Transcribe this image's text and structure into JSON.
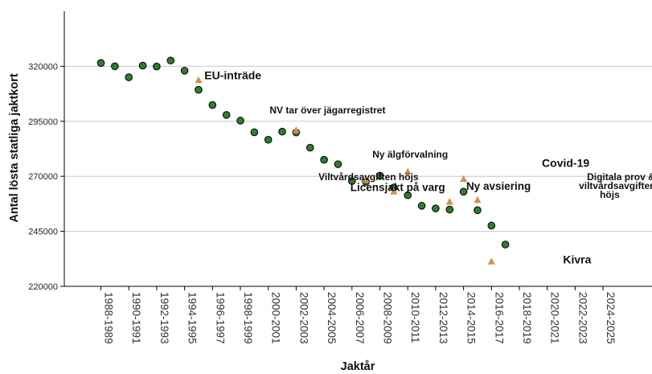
{
  "chart_data": {
    "type": "scatter",
    "xlabel": "Jaktår",
    "ylabel": "Antal lösta statliga jaktkort",
    "ylim": [
      220000,
      345000
    ],
    "yticks": [
      220000,
      245000,
      270000,
      295000,
      320000
    ],
    "ytick_labels": [
      "220000",
      "245000",
      "270000",
      "295000",
      "320000"
    ],
    "grid": "horizontal",
    "categories": [
      "1988-1989",
      "1989-1990",
      "1990-1991",
      "1991-1992",
      "1992-1993",
      "1993-1994",
      "1994-1995",
      "1995-1996",
      "1996-1997",
      "1997-1998",
      "1998-1999",
      "1999-2000",
      "2000-2001",
      "2001-2002",
      "2002-2003",
      "2003-2004",
      "2004-2005",
      "2005-2006",
      "2006-2007",
      "2007-2008",
      "2008-2009",
      "2009-2010",
      "2010-2011",
      "2011-2012",
      "2012-2013",
      "2013-2014",
      "2014-2015",
      "2015-2016",
      "2016-2017",
      "2017-2018",
      "2018-2019",
      "2019-2020",
      "2020-2021",
      "2021-2022",
      "2022-2023",
      "2023-2024",
      "2024-2025",
      "2025-2026"
    ],
    "x_tick_labels": [
      "1988-1989",
      "1990-1991",
      "1992-1993",
      "1994-1995",
      "1996-1997",
      "1998-1999",
      "2000-2001",
      "2002-2003",
      "2004-2005",
      "2006-2007",
      "2008-2009",
      "2010-2011",
      "2012-2013",
      "2014-2015",
      "2016-2017",
      "2018-2019",
      "2020-2021",
      "2022-2023",
      "2024-2025"
    ],
    "series": [
      {
        "marker": "circle",
        "color": "#2e7d32",
        "points": [
          {
            "x": "1988-1989",
            "y": 321500
          },
          {
            "x": "1989-1990",
            "y": 320000
          },
          {
            "x": "1990-1991",
            "y": 315000
          },
          {
            "x": "1991-1992",
            "y": 320300
          },
          {
            "x": "1992-1993",
            "y": 319900
          },
          {
            "x": "1993-1994",
            "y": 322600
          },
          {
            "x": "1994-1995",
            "y": 318000
          },
          {
            "x": "1995-1996",
            "y": 309300
          },
          {
            "x": "1996-1997",
            "y": 302400
          },
          {
            "x": "1997-1998",
            "y": 297900
          },
          {
            "x": "1998-1999",
            "y": 295300
          },
          {
            "x": "1999-2000",
            "y": 290000
          },
          {
            "x": "2000-2001",
            "y": 286600
          },
          {
            "x": "2001-2002",
            "y": 290300
          },
          {
            "x": "2002-2003",
            "y": 289900
          },
          {
            "x": "2003-2004",
            "y": 283000
          },
          {
            "x": "2004-2005",
            "y": 277500
          },
          {
            "x": "2005-2006",
            "y": 275500
          },
          {
            "x": "2006-2007",
            "y": 267900
          },
          {
            "x": "2007-2008",
            "y": 267500
          },
          {
            "x": "2008-2009",
            "y": 270300
          },
          {
            "x": "2009-2010",
            "y": 264900
          },
          {
            "x": "2010-2011",
            "y": 261400
          },
          {
            "x": "2011-2012",
            "y": 256600
          },
          {
            "x": "2012-2013",
            "y": 255400
          },
          {
            "x": "2013-2014",
            "y": 254900
          },
          {
            "x": "2014-2015",
            "y": 263000
          },
          {
            "x": "2015-2016",
            "y": 254600
          },
          {
            "x": "2016-2017",
            "y": 247600
          },
          {
            "x": "2017-2018",
            "y": 239000
          }
        ]
      },
      {
        "marker": "triangle",
        "color": "#d4914a",
        "points": [
          {
            "x": "1995-1996",
            "y": 313800
          },
          {
            "x": "2002-2003",
            "y": 291100
          },
          {
            "x": "2007-2008",
            "y": 268500
          },
          {
            "x": "2009-2010",
            "y": 263200
          },
          {
            "x": "2010-2011",
            "y": 272200
          },
          {
            "x": "2013-2014",
            "y": 258500
          },
          {
            "x": "2014-2015",
            "y": 268900
          },
          {
            "x": "2015-2016",
            "y": 259400
          },
          {
            "x": "2016-2017",
            "y": 231400
          }
        ]
      }
    ],
    "annotations": [
      {
        "text": "EU-inträde",
        "x": "1996-1997",
        "y": 314200,
        "size": 14
      },
      {
        "text": "NV tar över jägarregistret",
        "x": "2002-2003",
        "y": 298500,
        "size": 12
      },
      {
        "text": "Ny älgförvalning",
        "x": "2010-2011",
        "y": 278500,
        "size": 12
      },
      {
        "text": "Viltvårdsavgiften höjs",
        "x": "2004-2005",
        "y": 268300,
        "size": 12
      },
      {
        "text": "Licensjakt på varg",
        "x": "2006-2007",
        "y": 263300,
        "size": 13.5
      },
      {
        "text": "Ny avsiering",
        "x": "2015-2016",
        "y": 263800,
        "size": 13.5
      },
      {
        "text": "Covid-19",
        "x": "2021-2022",
        "y": 274200,
        "size": 14
      },
      {
        "text": "Digitala prov &",
        "x": "2024-2025",
        "y": 268200,
        "size": 12
      },
      {
        "text": "viltvårdsavgiften",
        "x": "2024-2025",
        "y": 264200,
        "size": 12
      },
      {
        "text": "höjs",
        "x": "2024-2025",
        "y": 260200,
        "size": 12
      },
      {
        "text": "Kivra",
        "x": "2022-2023",
        "y": 230500,
        "size": 14
      }
    ]
  }
}
